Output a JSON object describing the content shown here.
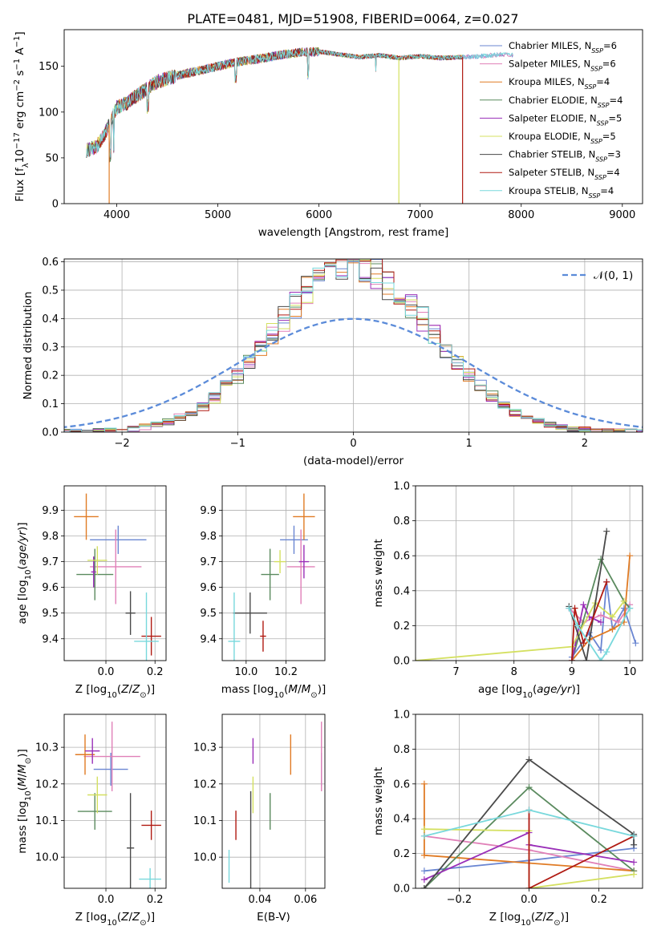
{
  "chart_data": [
    {
      "type": "line",
      "title": "PLATE=0481, MJD=51908, FIBERID=0064, z=0.027",
      "xlabel": "wavelength [Angstrom, rest frame]",
      "ylabel": "Flux [f_λ 10^-17 erg cm^-2 s^-1 A^-1]",
      "xlim": [
        3480,
        9200
      ],
      "ylim": [
        0,
        190
      ],
      "xticks": [
        4000,
        5000,
        6000,
        7000,
        8000,
        9000
      ],
      "yticks": [
        0,
        50,
        100,
        150
      ],
      "grid": false,
      "legend_position": "top-right",
      "continuum": {
        "x": [
          3700,
          3800,
          3900,
          4000,
          4100,
          4200,
          4400,
          4600,
          4800,
          5000,
          5200,
          5400,
          5600,
          5800,
          6000,
          6200,
          6400,
          6600,
          6800,
          7000,
          7200,
          7400,
          7600,
          7800,
          8000,
          8200,
          8400,
          8600,
          8800,
          9000,
          9200
        ],
        "y": [
          58,
          62,
          80,
          105,
          110,
          118,
          133,
          140,
          145,
          150,
          155,
          158,
          162,
          165,
          166,
          163,
          160,
          162,
          159,
          161,
          159,
          160,
          161,
          163,
          162,
          161,
          162,
          161,
          160,
          159,
          158
        ]
      },
      "dips": [
        {
          "x": 3925,
          "series": 2
        },
        {
          "x": 6790,
          "series": 5
        },
        {
          "x": 7420,
          "series": 7
        }
      ],
      "series": [
        {
          "name": "Chabrier MILES, N_SSP=6",
          "color": "#6a86d2"
        },
        {
          "name": "Salpeter MILES, N_SSP=6",
          "color": "#e080b8"
        },
        {
          "name": "Kroupa MILES, N_SSP=4",
          "color": "#e07b24"
        },
        {
          "name": "Chabrier ELODIE, N_SSP=4",
          "color": "#5a8a5e"
        },
        {
          "name": "Salpeter ELODIE, N_SSP=5",
          "color": "#9a2fb8"
        },
        {
          "name": "Kroupa ELODIE, N_SSP=5",
          "color": "#d4e060"
        },
        {
          "name": "Chabrier STELIB, N_SSP=3",
          "color": "#4a4a4a"
        },
        {
          "name": "Salpeter STELIB, N_SSP=4",
          "color": "#b01a12"
        },
        {
          "name": "Kroupa STELIB, N_SSP=4",
          "color": "#78d8dc"
        }
      ]
    },
    {
      "type": "line",
      "xlabel": "(data-model)/error",
      "ylabel": "Normed distribution",
      "xlim": [
        -2.5,
        2.5
      ],
      "ylim": [
        0,
        0.61
      ],
      "xticks": [
        -2,
        -1,
        0,
        1,
        2
      ],
      "yticks": [
        0.0,
        0.1,
        0.2,
        0.3,
        0.4,
        0.5,
        0.6
      ],
      "grid": true,
      "legend_position": "top-right",
      "legend": "𝒩(0, 1)",
      "reference_curve": {
        "name": "𝒩(0, 1)",
        "mean": 0,
        "sigma": 1,
        "color": "#5b8bd9"
      },
      "bin_width": 0.1,
      "histogram_sigma": 0.68
    },
    {
      "type": "scatter",
      "xlabel": "Z [log10(Z/Z☉)]",
      "ylabel": "age  [log10(age/yr)]",
      "xlim": [
        -0.17,
        0.245
      ],
      "ylim": [
        9.315,
        9.995
      ],
      "xticks": [
        0.0,
        0.2
      ],
      "yticks": [
        9.4,
        9.5,
        9.6,
        9.7,
        9.8,
        9.9
      ],
      "grid": true,
      "points": [
        {
          "x": 0.05,
          "y": 9.785,
          "xerr": 0.115,
          "yerr": 0.055
        },
        {
          "x": 0.04,
          "y": 9.68,
          "xerr": 0.105,
          "yerr": 0.145
        },
        {
          "x": -0.08,
          "y": 9.875,
          "xerr": 0.05,
          "yerr": 0.09
        },
        {
          "x": -0.045,
          "y": 9.65,
          "xerr": 0.075,
          "yerr": 0.1
        },
        {
          "x": -0.05,
          "y": 9.66,
          "xerr": 0.01,
          "yerr": 0.06
        },
        {
          "x": -0.035,
          "y": 9.705,
          "xerr": 0.04,
          "yerr": 0.055
        },
        {
          "x": 0.1,
          "y": 9.5,
          "xerr": 0.02,
          "yerr": 0.085
        },
        {
          "x": 0.185,
          "y": 9.41,
          "xerr": 0.04,
          "yerr": 0.075
        },
        {
          "x": 0.165,
          "y": 9.39,
          "xerr": 0.05,
          "yerr": 0.19
        }
      ]
    },
    {
      "type": "scatter",
      "xlabel": "mass [log10(M/M☉)]",
      "ylabel": "",
      "xlim": [
        9.88,
        10.395
      ],
      "ylim": [
        9.315,
        9.995
      ],
      "xticks": [
        10.0,
        10.2
      ],
      "yticks": [
        9.4,
        9.5,
        9.6,
        9.7,
        9.8,
        9.9
      ],
      "grid": true,
      "points": [
        {
          "x": 10.24,
          "y": 9.785,
          "xerr": 0.07,
          "yerr": 0.055
        },
        {
          "x": 10.275,
          "y": 9.68,
          "xerr": 0.07,
          "yerr": 0.145
        },
        {
          "x": 10.29,
          "y": 9.875,
          "xerr": 0.055,
          "yerr": 0.09
        },
        {
          "x": 10.12,
          "y": 9.65,
          "xerr": 0.045,
          "yerr": 0.1
        },
        {
          "x": 10.29,
          "y": 9.7,
          "xerr": 0.025,
          "yerr": 0.065
        },
        {
          "x": 10.17,
          "y": 9.7,
          "xerr": 0.03,
          "yerr": 0.045
        },
        {
          "x": 10.02,
          "y": 9.5,
          "xerr": 0.085,
          "yerr": 0.08
        },
        {
          "x": 10.085,
          "y": 9.41,
          "xerr": 0.015,
          "yerr": 0.06
        },
        {
          "x": 9.94,
          "y": 9.39,
          "xerr": 0.03,
          "yerr": 0.19
        }
      ]
    },
    {
      "type": "line",
      "xlabel": "age  [log10(age/yr)]",
      "ylabel": "mass weight",
      "xlim": [
        6.3,
        10.22
      ],
      "ylim": [
        0,
        1
      ],
      "xticks": [
        7,
        8,
        9,
        10
      ],
      "yticks": [
        0.0,
        0.2,
        0.4,
        0.6,
        0.8,
        1.0
      ],
      "grid": true,
      "series": [
        {
          "color": "#6a86d2",
          "x": [
            9.0,
            9.3,
            9.5,
            9.6,
            9.7,
            9.9,
            10.1
          ],
          "y": [
            0.02,
            0.16,
            0.06,
            0.45,
            0.18,
            0.3,
            0.1
          ]
        },
        {
          "color": "#e080b8",
          "x": [
            8.95,
            9.2,
            9.5,
            9.8,
            10.0
          ],
          "y": [
            0.3,
            0.22,
            0.26,
            0.22,
            0.32
          ]
        },
        {
          "color": "#e07b24",
          "x": [
            9.0,
            9.3,
            9.7,
            9.9,
            10.0
          ],
          "y": [
            0.0,
            0.12,
            0.18,
            0.22,
            0.6
          ]
        },
        {
          "color": "#5a8a5e",
          "x": [
            9.0,
            9.5,
            9.9,
            10.0
          ],
          "y": [
            0.0,
            0.58,
            0.34,
            0.3
          ]
        },
        {
          "color": "#9a2fb8",
          "x": [
            9.0,
            9.2,
            9.3,
            9.5
          ],
          "y": [
            0.0,
            0.32,
            0.25,
            0.22
          ]
        },
        {
          "color": "#d4e060",
          "x": [
            6.3,
            9.0,
            9.4,
            9.7,
            9.9
          ],
          "y": [
            0.0,
            0.08,
            0.33,
            0.25,
            0.34
          ]
        },
        {
          "color": "#4a4a4a",
          "x": [
            8.95,
            9.25,
            9.6
          ],
          "y": [
            0.31,
            0.0,
            0.74
          ]
        },
        {
          "color": "#b01a12",
          "x": [
            9.0,
            9.05,
            9.2,
            9.6
          ],
          "y": [
            0.0,
            0.3,
            0.1,
            0.45
          ]
        },
        {
          "color": "#78d8dc",
          "x": [
            8.95,
            9.1,
            9.5,
            9.6,
            10.0
          ],
          "y": [
            0.3,
            0.2,
            0.0,
            0.05,
            0.3
          ]
        }
      ]
    },
    {
      "type": "scatter",
      "xlabel": "Z [log10(Z/Z☉)]",
      "ylabel": "mass [log10(M/M☉)]",
      "xlim": [
        -0.17,
        0.245
      ],
      "ylim": [
        9.915,
        10.39
      ],
      "xticks": [
        0.0,
        0.2
      ],
      "yticks": [
        10.0,
        10.1,
        10.2,
        10.3
      ],
      "grid": true,
      "points": [
        {
          "x": 0.02,
          "y": 10.24,
          "xerr": 0.07,
          "yerr": 0.045
        },
        {
          "x": 0.025,
          "y": 10.275,
          "xerr": 0.115,
          "yerr": 0.095
        },
        {
          "x": -0.085,
          "y": 10.28,
          "xerr": 0.04,
          "yerr": 0.055
        },
        {
          "x": -0.045,
          "y": 10.125,
          "xerr": 0.07,
          "yerr": 0.05
        },
        {
          "x": -0.055,
          "y": 10.29,
          "xerr": 0.03,
          "yerr": 0.035
        },
        {
          "x": -0.035,
          "y": 10.17,
          "xerr": 0.04,
          "yerr": 0.05
        },
        {
          "x": 0.1,
          "y": 10.025,
          "xerr": 0.015,
          "yerr": 0.15
        },
        {
          "x": 0.185,
          "y": 10.087,
          "xerr": 0.04,
          "yerr": 0.04
        },
        {
          "x": 0.18,
          "y": 9.94,
          "xerr": 0.045,
          "yerr": 0.03
        }
      ]
    },
    {
      "type": "scatter",
      "xlabel": "E(B-V)",
      "ylabel": "",
      "xlim": [
        0.0235,
        0.0685
      ],
      "ylim": [
        9.915,
        10.39
      ],
      "xticks": [
        0.04,
        0.06
      ],
      "yticks": [
        10.0,
        10.1,
        10.2,
        10.3
      ],
      "grid": true,
      "points": [
        {
          "x": 0.067,
          "y": 10.24,
          "yerr": 0.045
        },
        {
          "x": 0.067,
          "y": 10.275,
          "yerr": 0.095
        },
        {
          "x": 0.0535,
          "y": 10.28,
          "yerr": 0.055
        },
        {
          "x": 0.0445,
          "y": 10.125,
          "yerr": 0.05
        },
        {
          "x": 0.037,
          "y": 10.29,
          "yerr": 0.035
        },
        {
          "x": 0.037,
          "y": 10.17,
          "yerr": 0.05
        },
        {
          "x": 0.036,
          "y": 10.03,
          "yerr": 0.15
        },
        {
          "x": 0.0295,
          "y": 10.087,
          "yerr": 0.04
        },
        {
          "x": 0.0265,
          "y": 9.975,
          "yerr": 0.045
        }
      ]
    },
    {
      "type": "line",
      "xlabel": "Z [log10(Z/Z☉)]",
      "ylabel": "mass weight",
      "xlim": [
        -0.325,
        0.325
      ],
      "ylim": [
        0,
        1
      ],
      "xticks": [
        -0.2,
        0.0,
        0.2
      ],
      "yticks": [
        0.0,
        0.2,
        0.4,
        0.6,
        0.8,
        1.0
      ],
      "grid": true,
      "series": [
        {
          "color": "#6a86d2",
          "x": [
            -0.3,
            0.0,
            0.3,
            0.3
          ],
          "y": [
            0.1,
            0.16,
            0.23,
            0.3
          ]
        },
        {
          "color": "#e080b8",
          "x": [
            -0.3,
            0.0,
            0.3
          ],
          "y": [
            0.3,
            0.22,
            0.1
          ]
        },
        {
          "color": "#e07b24",
          "x": [
            -0.3,
            -0.3,
            0.3
          ],
          "y": [
            0.6,
            0.19,
            0.1
          ]
        },
        {
          "color": "#5a8a5e",
          "x": [
            -0.3,
            0.0,
            0.3
          ],
          "y": [
            0.0,
            0.58,
            0.1
          ]
        },
        {
          "color": "#9a2fb8",
          "x": [
            -0.3,
            0.0,
            0.0,
            0.3
          ],
          "y": [
            0.05,
            0.32,
            0.25,
            0.15
          ]
        },
        {
          "color": "#d4e060",
          "x": [
            -0.3,
            0.0,
            0.0,
            0.3
          ],
          "y": [
            0.34,
            0.33,
            0.0,
            0.08
          ]
        },
        {
          "color": "#4a4a4a",
          "x": [
            -0.3,
            0.0,
            0.3,
            0.3
          ],
          "y": [
            0.0,
            0.74,
            0.31,
            0.25
          ]
        },
        {
          "color": "#b01a12",
          "x": [
            0.0,
            0.0,
            0.3
          ],
          "y": [
            0.45,
            0.0,
            0.3
          ]
        },
        {
          "color": "#78d8dc",
          "x": [
            -0.3,
            0.0,
            0.3
          ],
          "y": [
            0.3,
            0.45,
            0.3
          ]
        }
      ]
    }
  ]
}
